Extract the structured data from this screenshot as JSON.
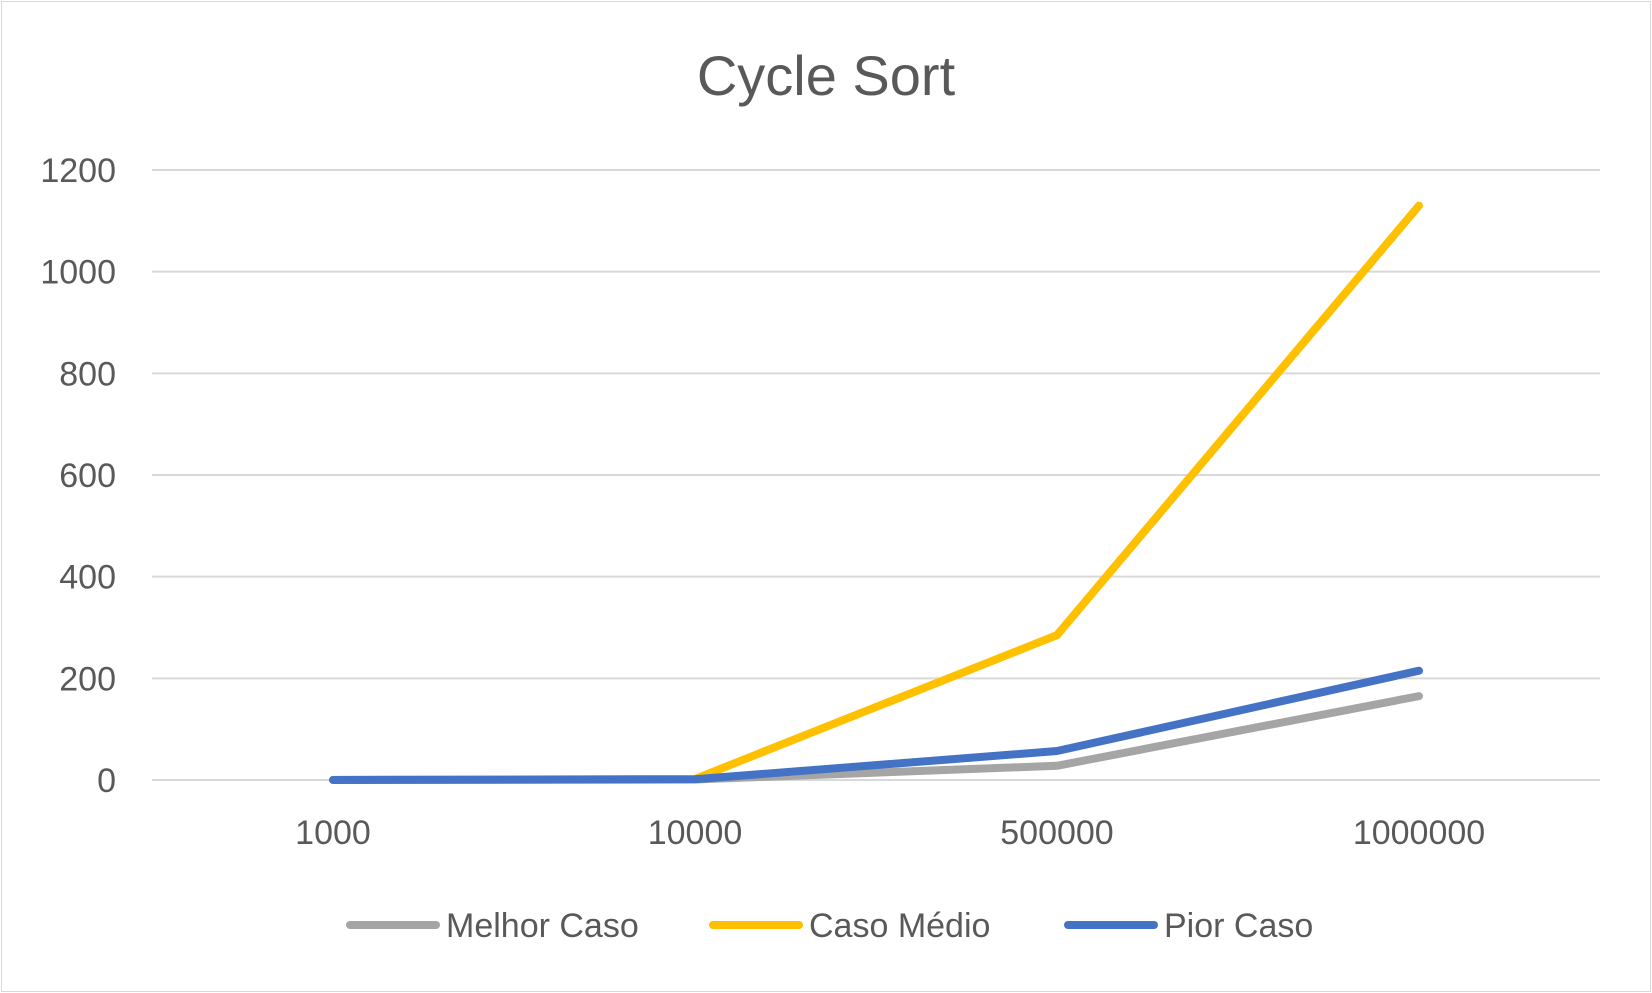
{
  "chart_data": {
    "type": "line",
    "title": "Cycle Sort",
    "xlabel": "",
    "ylabel": "",
    "categories": [
      "1000",
      "10000",
      "500000",
      "1000000"
    ],
    "ylim": [
      0,
      1200
    ],
    "yticks": [
      "0",
      "200",
      "400",
      "600",
      "800",
      "1000",
      "1200"
    ],
    "grid": true,
    "legend_position": "bottom",
    "series": [
      {
        "name": "Melhor Caso",
        "color": "#A5A5A5",
        "values": [
          0.1,
          1,
          28,
          165
        ]
      },
      {
        "name": "Caso Médio",
        "color": "#FFC000",
        "values": [
          0.2,
          2,
          285,
          1130
        ]
      },
      {
        "name": "Pior Caso",
        "color": "#4472C4",
        "values": [
          0.1,
          1.5,
          57,
          215
        ]
      }
    ]
  }
}
